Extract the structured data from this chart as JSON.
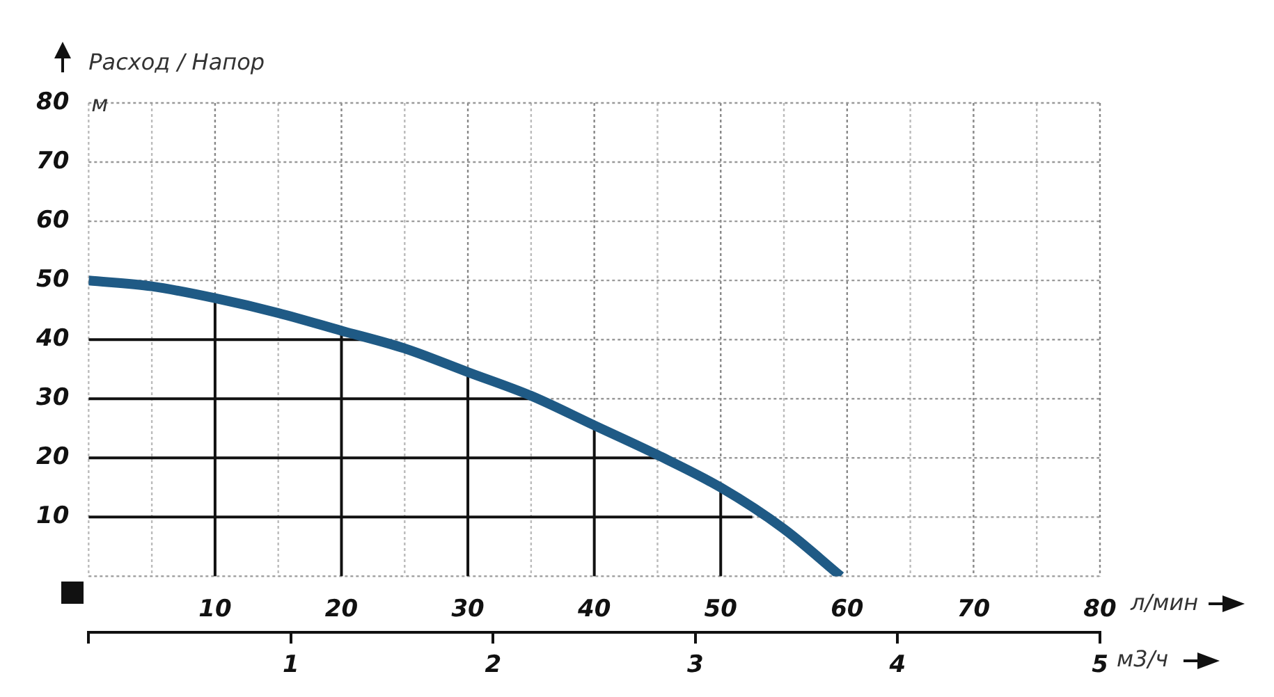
{
  "chart_data": {
    "type": "line",
    "title": "Расход / Напор",
    "ylabel": "м",
    "xlabel": "л/мин",
    "x2label": "м3/ч",
    "x": [
      0,
      5,
      10,
      15,
      20,
      25,
      30,
      35,
      40,
      45,
      50,
      55,
      59.5
    ],
    "series": [
      {
        "color": "#1f5a85",
        "values": [
          50,
          49,
          47,
          44.5,
          41.5,
          38.5,
          34.5,
          30.5,
          25.5,
          20.5,
          15,
          8,
          0
        ]
      },
      {
        "color": "#111111",
        "x": [
          10,
          10
        ],
        "values": [
          0,
          47
        ]
      },
      {
        "color": "#111111",
        "x": [
          20,
          20
        ],
        "values": [
          0,
          41.5
        ]
      },
      {
        "color": "#111111",
        "x": [
          30,
          30
        ],
        "values": [
          0,
          34.5
        ]
      },
      {
        "color": "#111111",
        "x": [
          40,
          40
        ],
        "values": [
          0,
          25.5
        ]
      },
      {
        "color": "#111111",
        "x": [
          50,
          50
        ],
        "values": [
          0,
          15
        ]
      },
      {
        "color": "#111111",
        "x": [
          0,
          52.5
        ],
        "values": [
          10,
          10
        ]
      },
      {
        "color": "#111111",
        "x": [
          0,
          45
        ],
        "values": [
          20,
          20
        ]
      },
      {
        "color": "#111111",
        "x": [
          0,
          35.5
        ],
        "values": [
          30,
          30
        ]
      },
      {
        "color": "#111111",
        "x": [
          0,
          22
        ],
        "values": [
          40,
          40
        ]
      }
    ],
    "xlim": [
      0,
      80
    ],
    "xticks": [
      {
        "value": 0,
        "label": null
      },
      {
        "value": 5,
        "label": null
      },
      10,
      {
        "value": 15,
        "label": null
      },
      20,
      {
        "value": 25,
        "label": null
      },
      30,
      {
        "value": 35,
        "label": null
      },
      40,
      {
        "value": 45,
        "label": null
      },
      50,
      {
        "value": 55,
        "label": null
      },
      60,
      {
        "value": 65,
        "label": null
      },
      70,
      {
        "value": 75,
        "label": null
      },
      80
    ],
    "ylim": [
      0,
      80
    ],
    "yticks": [
      {
        "value": 0,
        "label": null
      },
      10,
      20,
      30,
      40,
      50,
      60,
      70,
      80
    ],
    "x2lim": [
      0,
      5
    ],
    "x2ticks": [
      {
        "value": 0,
        "label": null
      },
      1,
      2,
      3,
      4,
      5
    ],
    "grid": true,
    "marker": "none",
    "legend": false
  }
}
